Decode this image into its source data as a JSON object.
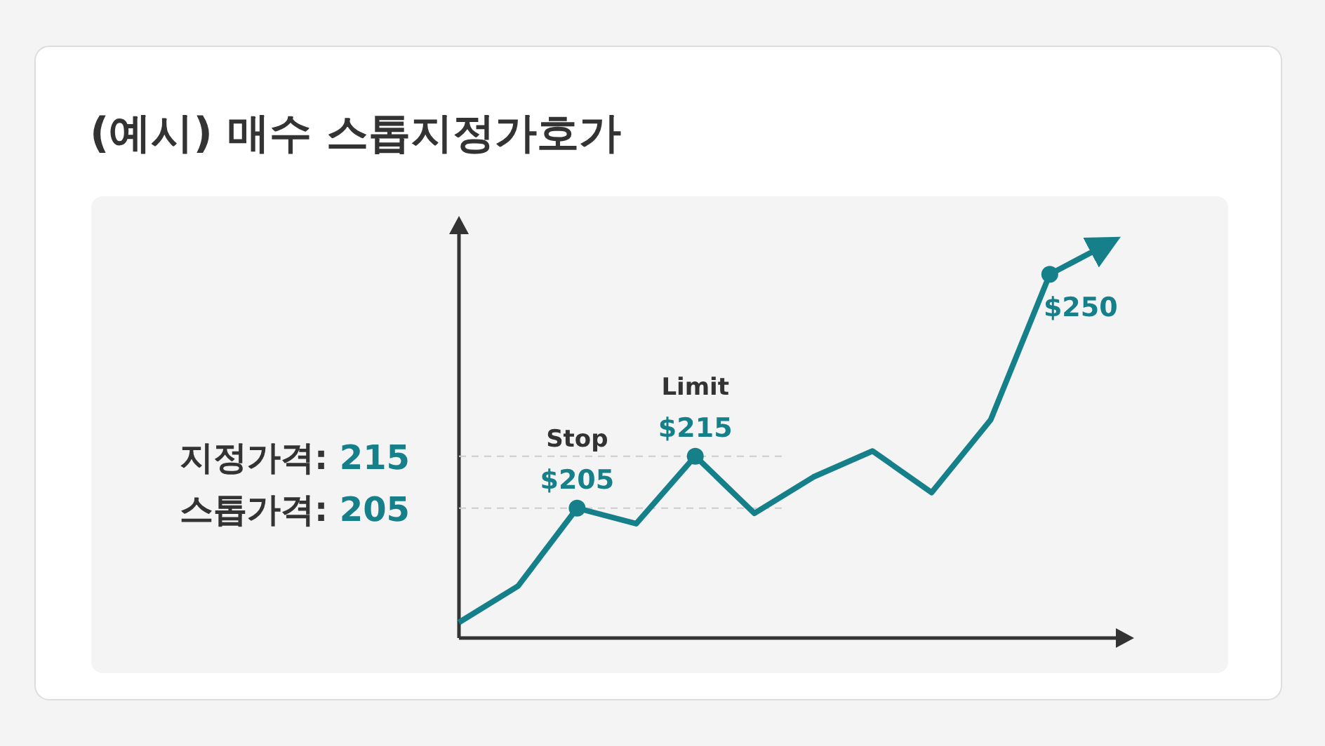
{
  "chart_data": {
    "type": "line",
    "title": "(예시) 매수 스톱지정가호가",
    "categories": [
      null,
      null,
      null,
      null,
      null,
      null,
      null,
      null,
      null,
      null,
      null,
      null
    ],
    "ylim": [
      180,
      258
    ],
    "series": [
      {
        "color": "#16808a",
        "values": [
          183,
          190,
          205,
          202,
          215,
          204,
          211,
          216,
          208,
          222,
          250,
          256
        ],
        "value_labels": [
          null,
          null,
          "$205",
          null,
          "$215",
          null,
          null,
          null,
          null,
          null,
          "$250",
          null
        ]
      }
    ],
    "ref_lines": [
      {
        "axis": "y",
        "value": 215,
        "label": "지정가격: 215",
        "line_style": "dashed",
        "color": "#cccccc"
      },
      {
        "axis": "y",
        "value": 205,
        "label": "스톱가격: 205",
        "line_style": "dashed",
        "color": "#cccccc"
      }
    ],
    "annotations": [
      {
        "text": "Stop",
        "y": 205
      },
      {
        "text": "Limit",
        "y": 215
      }
    ]
  }
}
